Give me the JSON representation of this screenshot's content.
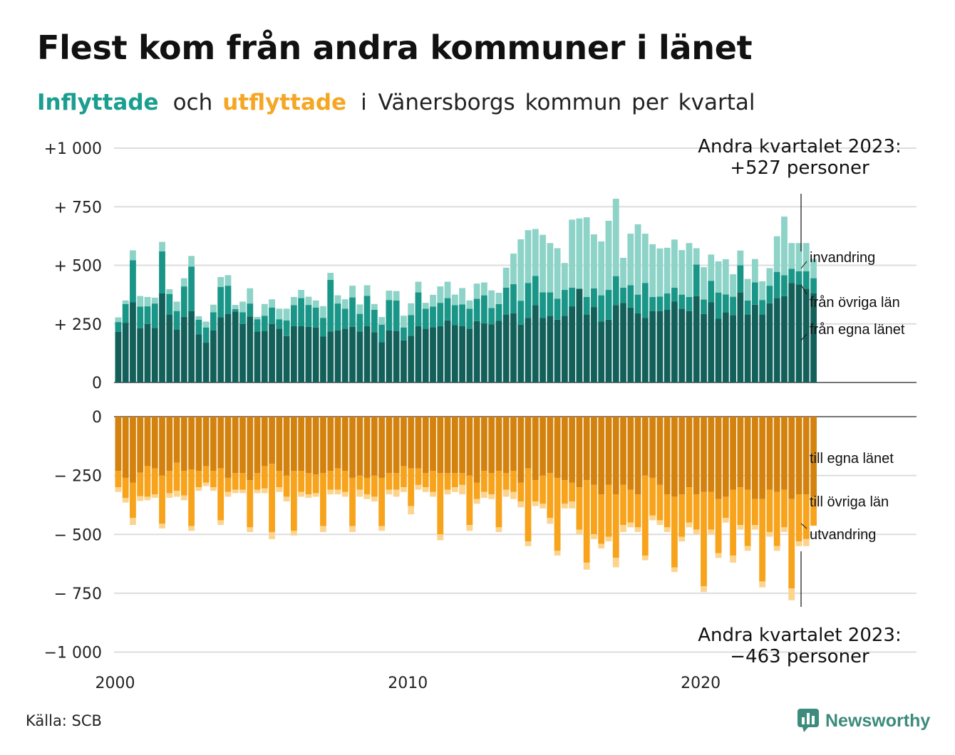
{
  "title": "Flest kom från andra kommuner i länet",
  "subtitle": {
    "in_word": "Inflyttade",
    "and_word": "och",
    "out_word": "utflyttade",
    "rest": [
      "i Vänersborgs",
      "kommun",
      "per",
      "kvartal"
    ]
  },
  "source": "Källa: SCB",
  "logo_text": "Newsworthy",
  "logo_icon": "newsworthy-bar-chart-icon",
  "colors": {
    "in_own": "#13605a",
    "in_other": "#1a9688",
    "in_immig": "#8dd3c7",
    "out_own": "#d4820e",
    "out_other": "#f7a31c",
    "out_emig": "#fcd48e",
    "grid": "#dddddd"
  },
  "annotations": {
    "top_line1": "Andra kvartalet 2023:",
    "top_line2": "+527 personer",
    "bottom_line1": "Andra kvartalet 2023:",
    "bottom_line2": "−463 personer",
    "in_labels": [
      "invandring",
      "från övriga län",
      "från egna länet"
    ],
    "out_labels": [
      "till egna länet",
      "till övriga län",
      "utvandring"
    ]
  },
  "chart_data": {
    "type": "bar",
    "stacked": true,
    "period": "quarter",
    "start": "2000Q1",
    "end": "2023Q2",
    "x_tick_labels": [
      "2000",
      "2010",
      "2020"
    ],
    "y_tick_labels_top": [
      "0",
      "+  250",
      "+  500",
      "+  750",
      "+1 000"
    ],
    "y_tick_labels_bottom": [
      "0",
      "−  250",
      "−  500",
      "−  750",
      "−1 000"
    ],
    "ylim_top": [
      0,
      1000
    ],
    "ylim_bottom": [
      -1000,
      0
    ],
    "grid": true,
    "inflow": {
      "series": [
        {
          "name": "från egna länet",
          "values": [
            216,
            255,
            342,
            232,
            250,
            233,
            380,
            290,
            225,
            280,
            305,
            205,
            170,
            222,
            278,
            293,
            303,
            250,
            282,
            218,
            220,
            250,
            230,
            198,
            240,
            240,
            238,
            235,
            196,
            218,
            222,
            230,
            238,
            218,
            240,
            215,
            172,
            222,
            220,
            180,
            200,
            240,
            230,
            236,
            240,
            265,
            245,
            240,
            230,
            262,
            252,
            248,
            263,
            290,
            295,
            247,
            275,
            330,
            275,
            285,
            268,
            285,
            325,
            400,
            290,
            322,
            260,
            268,
            330,
            340,
            320,
            295,
            275,
            305,
            305,
            310,
            345,
            315,
            305,
            368,
            292,
            342,
            272,
            300,
            288,
            385,
            290,
            332,
            290,
            338,
            360,
            368,
            425,
            418,
            400,
            380
          ]
        },
        {
          "name": "från övriga län",
          "values": [
            42,
            80,
            180,
            92,
            75,
            104,
            180,
            88,
            80,
            130,
            190,
            63,
            65,
            78,
            130,
            120,
            10,
            50,
            55,
            52,
            65,
            70,
            40,
            67,
            90,
            120,
            93,
            85,
            80,
            220,
            115,
            85,
            125,
            75,
            130,
            95,
            75,
            130,
            130,
            55,
            88,
            145,
            85,
            88,
            100,
            95,
            85,
            93,
            85,
            95,
            120,
            70,
            72,
            115,
            125,
            102,
            150,
            125,
            110,
            100,
            90,
            110,
            80,
            0,
            75,
            80,
            112,
            127,
            124,
            65,
            95,
            80,
            150,
            60,
            62,
            70,
            60,
            60,
            60,
            135,
            62,
            92,
            112,
            76,
            78,
            115,
            60,
            95,
            62,
            75,
            112,
            90,
            60,
            57,
            75,
            65
          ]
        },
        {
          "name": "invandring",
          "values": [
            20,
            15,
            42,
            45,
            40,
            25,
            40,
            20,
            40,
            35,
            45,
            15,
            25,
            32,
            42,
            45,
            18,
            45,
            65,
            10,
            50,
            35,
            45,
            50,
            35,
            35,
            35,
            30,
            50,
            30,
            35,
            40,
            50,
            40,
            45,
            25,
            32,
            40,
            40,
            50,
            50,
            45,
            25,
            50,
            70,
            70,
            45,
            70,
            35,
            65,
            55,
            75,
            48,
            85,
            130,
            262,
            225,
            200,
            245,
            210,
            215,
            115,
            290,
            300,
            340,
            230,
            230,
            295,
            330,
            127,
            220,
            300,
            210,
            225,
            205,
            195,
            205,
            190,
            230,
            70,
            138,
            112,
            133,
            150,
            96,
            63,
            92,
            100,
            80,
            75,
            152,
            250,
            110,
            120,
            120,
            82
          ]
        }
      ]
    },
    "outflow": {
      "series": [
        {
          "name": "till egna länet",
          "values": [
            -230,
            -260,
            -280,
            -238,
            -210,
            -220,
            -250,
            -230,
            -195,
            -230,
            -225,
            -230,
            -210,
            -230,
            -220,
            -260,
            -240,
            -240,
            -270,
            -240,
            -210,
            -200,
            -230,
            -250,
            -230,
            -230,
            -240,
            -245,
            -240,
            -230,
            -220,
            -230,
            -260,
            -250,
            -260,
            -250,
            -260,
            -240,
            -240,
            -210,
            -220,
            -220,
            -240,
            -230,
            -240,
            -240,
            -240,
            -240,
            -250,
            -280,
            -230,
            -240,
            -230,
            -240,
            -230,
            -280,
            -220,
            -270,
            -250,
            -240,
            -260,
            -270,
            -280,
            -300,
            -270,
            -290,
            -330,
            -290,
            -330,
            -290,
            -310,
            -330,
            -250,
            -260,
            -290,
            -330,
            -340,
            -330,
            -300,
            -330,
            -320,
            -320,
            -350,
            -340,
            -310,
            -300,
            -310,
            -350,
            -350,
            -310,
            -320,
            -310,
            -350,
            -330,
            -330,
            -340
          ]
        },
        {
          "name": "till övriga län",
          "values": [
            -70,
            -85,
            -150,
            -100,
            -130,
            -110,
            -205,
            -95,
            -120,
            -105,
            -240,
            -70,
            -70,
            -70,
            -220,
            -60,
            -70,
            -70,
            -200,
            -70,
            -95,
            -290,
            -70,
            -90,
            -255,
            -90,
            -90,
            -80,
            -225,
            -80,
            -90,
            -90,
            -205,
            -60,
            -70,
            -90,
            -205,
            -70,
            -70,
            -90,
            -160,
            -70,
            -60,
            -90,
            -260,
            -70,
            -60,
            -50,
            -210,
            -70,
            -90,
            -90,
            -240,
            -70,
            -90,
            -80,
            -310,
            -90,
            -120,
            -190,
            -310,
            -100,
            -80,
            -180,
            -350,
            -210,
            -210,
            -220,
            -270,
            -170,
            -140,
            -140,
            -340,
            -160,
            -150,
            -140,
            -300,
            -180,
            -150,
            -150,
            -400,
            -160,
            -230,
            -90,
            -280,
            -160,
            -240,
            -110,
            -350,
            -180,
            -230,
            -160,
            -380,
            -200,
            -190,
            -123
          ]
        },
        {
          "name": "utvandring",
          "values": [
            -20,
            -20,
            -30,
            -20,
            -15,
            -15,
            -20,
            -20,
            -25,
            -20,
            -20,
            -15,
            -15,
            -15,
            -20,
            -20,
            -15,
            -15,
            -20,
            -15,
            -20,
            -30,
            -20,
            -20,
            -20,
            -20,
            -15,
            -15,
            -25,
            -20,
            -20,
            -20,
            -25,
            -30,
            -20,
            -20,
            -20,
            -20,
            -30,
            -20,
            -35,
            -20,
            -20,
            -20,
            -25,
            -20,
            -20,
            -40,
            -25,
            -20,
            -25,
            -20,
            -20,
            -30,
            -30,
            -25,
            -20,
            -20,
            -20,
            -25,
            -20,
            -20,
            -30,
            -20,
            -30,
            -20,
            -20,
            -20,
            -40,
            -30,
            -20,
            -20,
            -20,
            -20,
            -20,
            -20,
            -20,
            -20,
            -20,
            -20,
            -25,
            -20,
            -20,
            -20,
            -30,
            -20,
            -20,
            -20,
            -25,
            -20,
            -20,
            -20,
            -50,
            -20,
            -30,
            0
          ]
        }
      ]
    }
  }
}
